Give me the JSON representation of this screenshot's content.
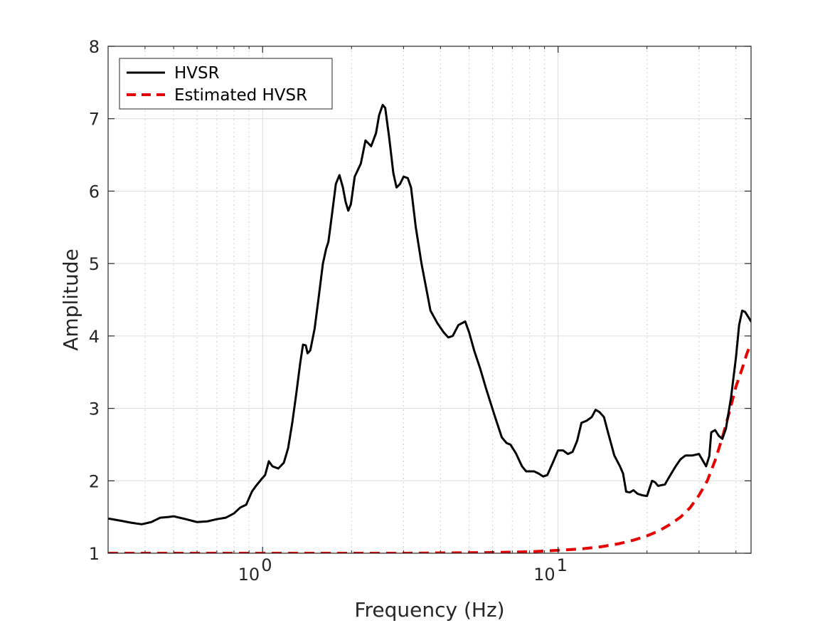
{
  "chart_data": {
    "type": "line",
    "xlabel": "Frequency (Hz)",
    "ylabel": "Amplitude",
    "xscale": "log",
    "xlim": [
      0.3,
      45
    ],
    "ylim": [
      1,
      8
    ],
    "x_ticks": [
      {
        "base": "10",
        "exp": "0",
        "value": 1
      },
      {
        "base": "10",
        "exp": "1",
        "value": 10
      }
    ],
    "y_ticks": [
      "1",
      "2",
      "3",
      "4",
      "5",
      "6",
      "7",
      "8"
    ],
    "grid": true,
    "legend_position": "top-left",
    "series": [
      {
        "name": "HVSR",
        "color": "#000000",
        "style": "solid",
        "points": [
          [
            0.3,
            1.48
          ],
          [
            0.33,
            1.45
          ],
          [
            0.36,
            1.42
          ],
          [
            0.39,
            1.4
          ],
          [
            0.42,
            1.43
          ],
          [
            0.45,
            1.49
          ],
          [
            0.48,
            1.5
          ],
          [
            0.5,
            1.51
          ],
          [
            0.55,
            1.47
          ],
          [
            0.6,
            1.43
          ],
          [
            0.65,
            1.44
          ],
          [
            0.7,
            1.47
          ],
          [
            0.75,
            1.49
          ],
          [
            0.8,
            1.55
          ],
          [
            0.84,
            1.63
          ],
          [
            0.88,
            1.67
          ],
          [
            0.92,
            1.85
          ],
          [
            0.95,
            1.93
          ],
          [
            0.99,
            2.02
          ],
          [
            1.02,
            2.08
          ],
          [
            1.05,
            2.27
          ],
          [
            1.08,
            2.2
          ],
          [
            1.13,
            2.17
          ],
          [
            1.18,
            2.25
          ],
          [
            1.22,
            2.45
          ],
          [
            1.26,
            2.8
          ],
          [
            1.3,
            3.2
          ],
          [
            1.34,
            3.62
          ],
          [
            1.37,
            3.88
          ],
          [
            1.4,
            3.87
          ],
          [
            1.42,
            3.76
          ],
          [
            1.45,
            3.8
          ],
          [
            1.5,
            4.1
          ],
          [
            1.55,
            4.55
          ],
          [
            1.6,
            5.0
          ],
          [
            1.64,
            5.2
          ],
          [
            1.67,
            5.3
          ],
          [
            1.72,
            5.7
          ],
          [
            1.77,
            6.1
          ],
          [
            1.82,
            6.22
          ],
          [
            1.87,
            6.05
          ],
          [
            1.91,
            5.85
          ],
          [
            1.95,
            5.73
          ],
          [
            1.99,
            5.82
          ],
          [
            2.05,
            6.2
          ],
          [
            2.15,
            6.38
          ],
          [
            2.23,
            6.7
          ],
          [
            2.33,
            6.62
          ],
          [
            2.42,
            6.8
          ],
          [
            2.48,
            7.05
          ],
          [
            2.55,
            7.19
          ],
          [
            2.6,
            7.15
          ],
          [
            2.68,
            6.75
          ],
          [
            2.77,
            6.25
          ],
          [
            2.84,
            6.05
          ],
          [
            2.92,
            6.1
          ],
          [
            3.0,
            6.2
          ],
          [
            3.1,
            6.18
          ],
          [
            3.18,
            6.05
          ],
          [
            3.3,
            5.5
          ],
          [
            3.45,
            5.0
          ],
          [
            3.7,
            4.35
          ],
          [
            3.9,
            4.18
          ],
          [
            4.1,
            4.05
          ],
          [
            4.25,
            3.98
          ],
          [
            4.4,
            4.0
          ],
          [
            4.6,
            4.15
          ],
          [
            4.85,
            4.2
          ],
          [
            5.0,
            4.05
          ],
          [
            5.2,
            3.8
          ],
          [
            5.45,
            3.55
          ],
          [
            5.7,
            3.28
          ],
          [
            6.1,
            2.9
          ],
          [
            6.45,
            2.6
          ],
          [
            6.7,
            2.52
          ],
          [
            6.9,
            2.5
          ],
          [
            7.2,
            2.38
          ],
          [
            7.55,
            2.2
          ],
          [
            7.8,
            2.13
          ],
          [
            8.3,
            2.13
          ],
          [
            8.6,
            2.1
          ],
          [
            8.9,
            2.06
          ],
          [
            9.2,
            2.08
          ],
          [
            9.6,
            2.25
          ],
          [
            10.0,
            2.42
          ],
          [
            10.4,
            2.42
          ],
          [
            10.8,
            2.37
          ],
          [
            11.2,
            2.4
          ],
          [
            11.6,
            2.55
          ],
          [
            12.0,
            2.8
          ],
          [
            12.5,
            2.83
          ],
          [
            13.0,
            2.88
          ],
          [
            13.4,
            2.98
          ],
          [
            13.8,
            2.95
          ],
          [
            14.3,
            2.88
          ],
          [
            14.8,
            2.65
          ],
          [
            15.5,
            2.35
          ],
          [
            16.2,
            2.2
          ],
          [
            16.6,
            2.1
          ],
          [
            17.0,
            1.85
          ],
          [
            17.5,
            1.84
          ],
          [
            18.0,
            1.87
          ],
          [
            18.6,
            1.82
          ],
          [
            19.3,
            1.8
          ],
          [
            20.0,
            1.79
          ],
          [
            20.8,
            2.0
          ],
          [
            21.3,
            1.98
          ],
          [
            21.8,
            1.93
          ],
          [
            23.0,
            1.95
          ],
          [
            24.0,
            2.08
          ],
          [
            25.0,
            2.2
          ],
          [
            26.0,
            2.3
          ],
          [
            27.0,
            2.35
          ],
          [
            28.5,
            2.35
          ],
          [
            30.0,
            2.37
          ],
          [
            31.0,
            2.27
          ],
          [
            31.7,
            2.2
          ],
          [
            32.5,
            2.34
          ],
          [
            33.0,
            2.67
          ],
          [
            34.0,
            2.7
          ],
          [
            35.0,
            2.62
          ],
          [
            36.0,
            2.58
          ],
          [
            37.0,
            2.72
          ],
          [
            38.5,
            3.15
          ],
          [
            40.0,
            3.7
          ],
          [
            41.0,
            4.15
          ],
          [
            42.0,
            4.35
          ],
          [
            43.0,
            4.33
          ],
          [
            45.0,
            4.2
          ]
        ]
      },
      {
        "name": "Estimated HVSR",
        "color": "#e60000",
        "style": "dashed",
        "points": [
          [
            0.3,
            1.0
          ],
          [
            1.0,
            1.0
          ],
          [
            3.0,
            1.0
          ],
          [
            6.0,
            1.01
          ],
          [
            8.0,
            1.02
          ],
          [
            10.0,
            1.04
          ],
          [
            12.0,
            1.06
          ],
          [
            14.0,
            1.09
          ],
          [
            16.0,
            1.13
          ],
          [
            18.0,
            1.18
          ],
          [
            20.0,
            1.24
          ],
          [
            22.0,
            1.31
          ],
          [
            24.0,
            1.4
          ],
          [
            26.0,
            1.5
          ],
          [
            28.0,
            1.63
          ],
          [
            30.0,
            1.8
          ],
          [
            32.0,
            2.0
          ],
          [
            34.0,
            2.28
          ],
          [
            36.0,
            2.6
          ],
          [
            38.0,
            2.95
          ],
          [
            40.0,
            3.3
          ],
          [
            42.0,
            3.55
          ],
          [
            43.5,
            3.75
          ],
          [
            45.0,
            3.9
          ]
        ]
      }
    ]
  }
}
